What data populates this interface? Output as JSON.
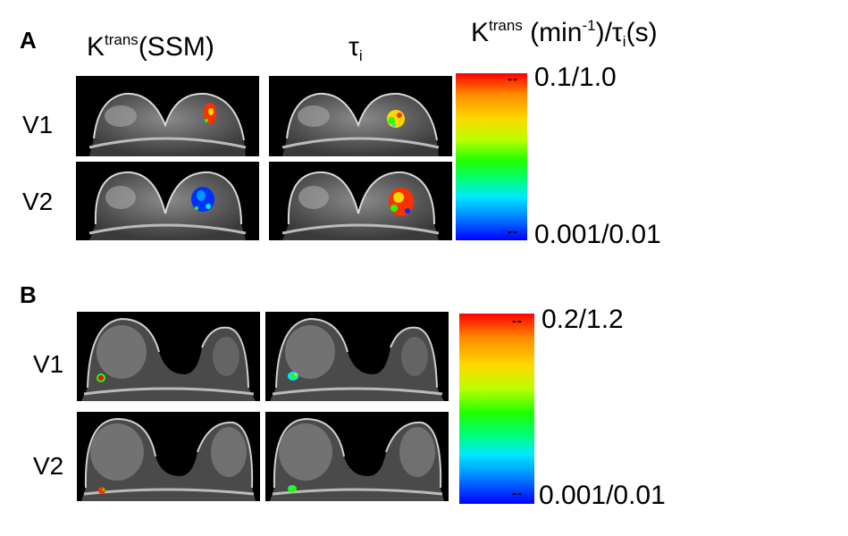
{
  "panels": [
    {
      "label": "A",
      "col_headers": {
        "ssm": {
          "base": "K",
          "sup": "trans",
          "rest": "(SSM)"
        },
        "tau": {
          "base": "τ",
          "sub": "i"
        }
      },
      "scale_title": {
        "base": "K",
        "sup": "trans",
        "mid": " (min",
        "sup2": "-1",
        "end": ")/τ",
        "sub": "i",
        "tail": "(s)"
      },
      "rows": [
        "V1",
        "V2"
      ],
      "colorbar": {
        "max_label": "0.1/1.0",
        "min_label": "0.001/0.01"
      }
    },
    {
      "label": "B",
      "rows": [
        "V1",
        "V2"
      ],
      "colorbar": {
        "max_label": "0.2/1.2",
        "min_label": "0.001/0.01"
      }
    }
  ],
  "colormap": [
    "#ff0000",
    "#ffd800",
    "#22ff00",
    "#00e8ff",
    "#0000ff"
  ]
}
